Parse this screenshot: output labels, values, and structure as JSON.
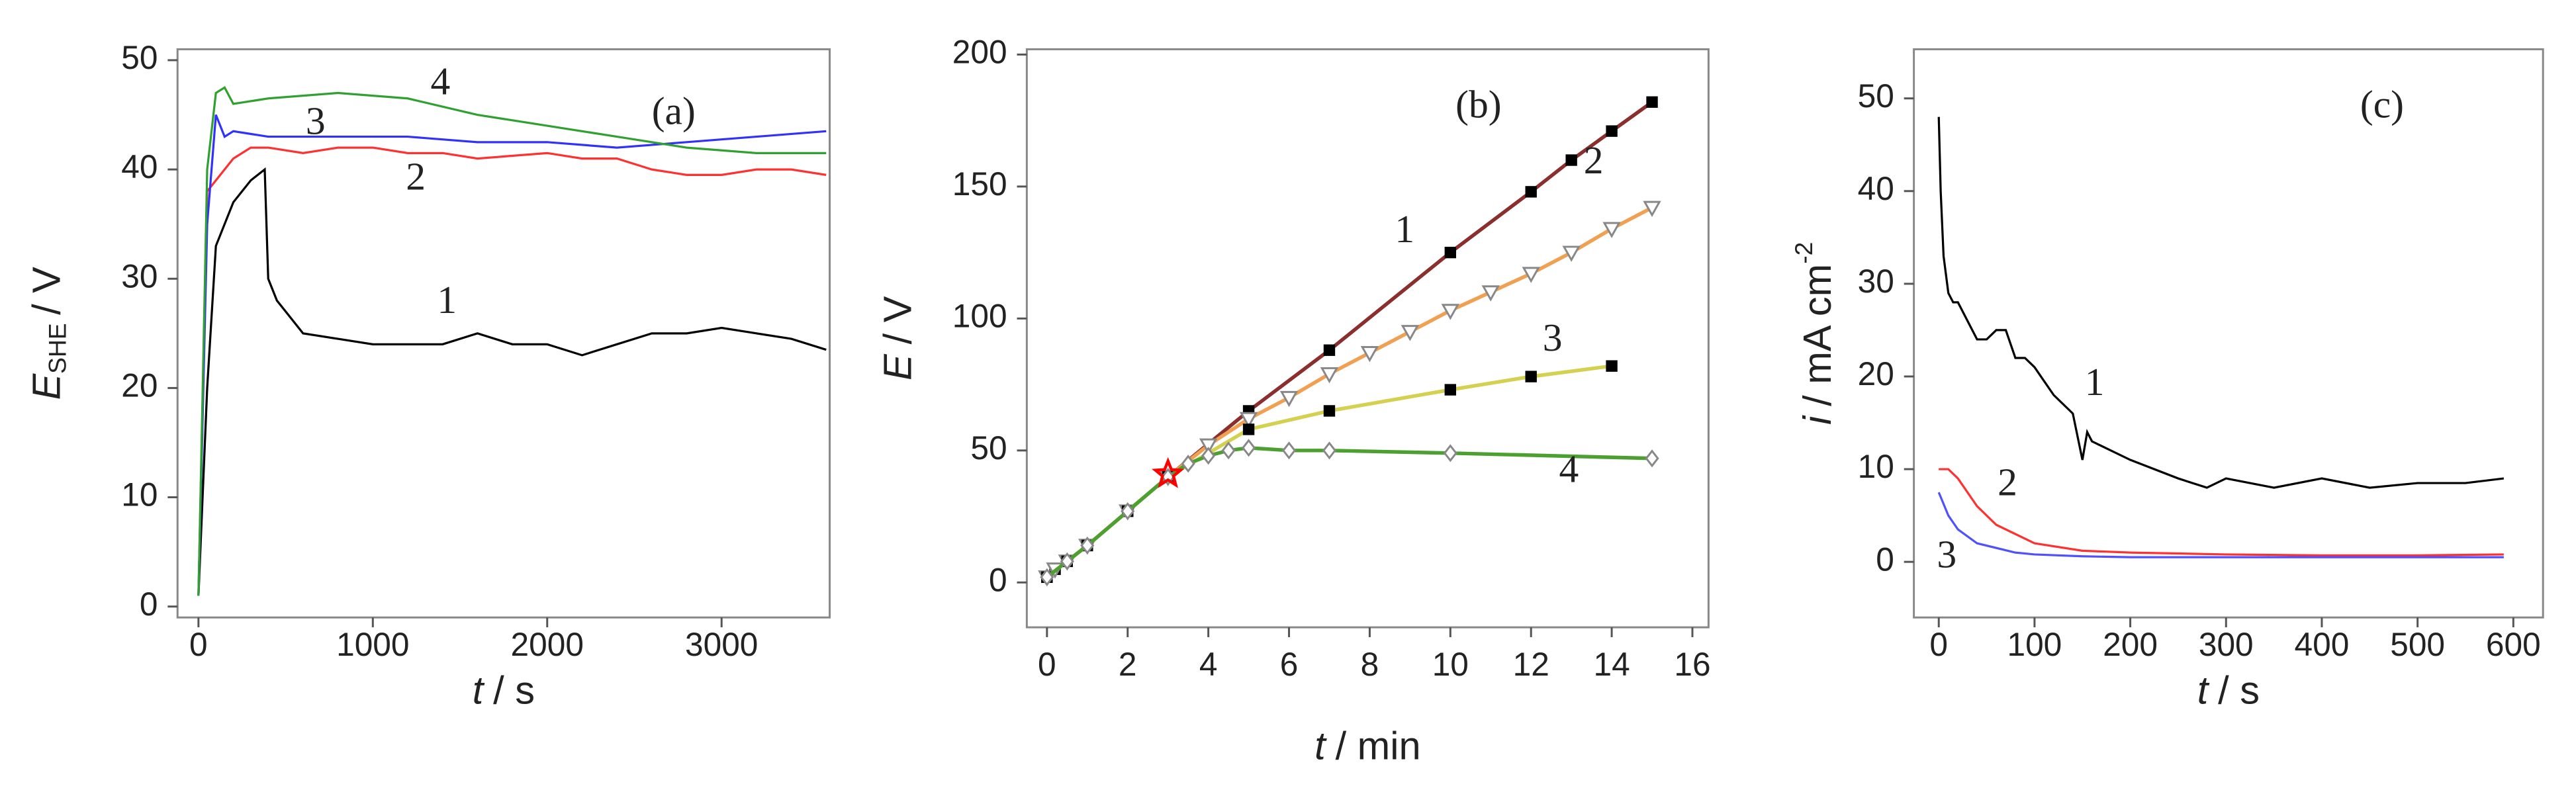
{
  "chart_data": [
    {
      "type": "line",
      "panel_label": "(a)",
      "x_label": {
        "variable": "t",
        "unit": "/ s"
      },
      "y_label": {
        "variable": "E",
        "subscript": "SHE",
        "unit": "/ V"
      },
      "xlim": [
        -120,
        3620
      ],
      "xticks": [
        0,
        1000,
        2000,
        3000
      ],
      "ylim": [
        -1,
        51
      ],
      "yticks": [
        0,
        10,
        20,
        30,
        40,
        50
      ],
      "series": [
        {
          "name": "1",
          "color": "#000000",
          "x": [
            0,
            50,
            100,
            200,
            300,
            380,
            400,
            450,
            500,
            600,
            800,
            1000,
            1200,
            1400,
            1600,
            1800,
            2000,
            2200,
            2400,
            2600,
            2800,
            3000,
            3200,
            3400,
            3600
          ],
          "values": [
            1,
            20,
            33,
            37,
            39,
            40,
            30,
            28,
            27,
            25,
            24.5,
            24,
            24,
            24,
            25,
            24,
            24,
            23,
            24,
            25,
            25,
            25.5,
            25,
            24.5,
            23.5
          ]
        },
        {
          "name": "2",
          "color": "#ff3030",
          "x": [
            0,
            50,
            100,
            200,
            300,
            400,
            600,
            800,
            1000,
            1200,
            1400,
            1600,
            2000,
            2200,
            2400,
            2600,
            2800,
            3000,
            3200,
            3400,
            3600
          ],
          "values": [
            1,
            38,
            39,
            41,
            42,
            42,
            41.5,
            42,
            42,
            41.5,
            41.5,
            41,
            41.5,
            41,
            41,
            40,
            39.5,
            39.5,
            40,
            40,
            39.5
          ]
        },
        {
          "name": "3",
          "color": "#3030ff",
          "x": [
            0,
            50,
            100,
            150,
            200,
            400,
            800,
            1200,
            1600,
            2000,
            2400,
            2800,
            3200,
            3600
          ],
          "values": [
            1,
            35,
            45,
            43,
            43.5,
            43,
            43,
            43,
            42.5,
            42.5,
            42,
            42.5,
            43,
            43.5
          ]
        },
        {
          "name": "4",
          "color": "#30a030",
          "x": [
            0,
            50,
            100,
            150,
            200,
            400,
            800,
            1200,
            1600,
            2000,
            2400,
            2800,
            3200,
            3600
          ],
          "values": [
            1,
            40,
            47,
            47.5,
            46,
            46.5,
            47,
            46.5,
            45,
            44,
            43,
            42,
            41.5,
            41.5
          ]
        }
      ]
    },
    {
      "type": "line",
      "panel_label": "(b)",
      "x_label": {
        "variable": "t",
        "unit": "/ min"
      },
      "y_label": {
        "variable": "E",
        "unit": "/ V"
      },
      "xlim": [
        -0.5,
        16.4
      ],
      "xticks": [
        0,
        2,
        4,
        6,
        8,
        10,
        12,
        14,
        16
      ],
      "ylim": [
        -17,
        202
      ],
      "yticks": [
        0,
        50,
        100,
        150,
        200
      ],
      "highlight": {
        "x": 3,
        "y": 41,
        "color": "#ff0000"
      },
      "series": [
        {
          "name": "1",
          "color": "#8b2e2e",
          "marker": "square",
          "marker_color": "#000000",
          "x": [
            0,
            0.2,
            0.5,
            1,
            2,
            3,
            5,
            7,
            10,
            12,
            13,
            14,
            15
          ],
          "values": [
            2,
            5,
            8,
            14,
            27,
            40,
            65,
            88,
            125,
            148,
            160,
            171,
            182
          ]
        },
        {
          "name": "2",
          "color": "#f0a050",
          "marker": "triangle",
          "marker_color": "#888888",
          "x": [
            0,
            0.2,
            0.5,
            1,
            2,
            3,
            4,
            5,
            6,
            7,
            8,
            9,
            10,
            11,
            12,
            13,
            14,
            15
          ],
          "values": [
            2,
            5,
            8,
            14,
            27,
            40,
            52,
            62,
            70,
            79,
            87,
            95,
            103,
            110,
            117,
            125,
            134,
            142
          ]
        },
        {
          "name": "3",
          "color": "#d4d050",
          "marker": "square",
          "marker_color": "#000000",
          "x": [
            0,
            0.5,
            1,
            2,
            3,
            5,
            7,
            10,
            12,
            14
          ],
          "values": [
            2,
            8,
            14,
            27,
            40,
            58,
            65,
            73,
            78,
            82
          ]
        },
        {
          "name": "4",
          "color": "#4ca030",
          "marker": "diamond",
          "marker_color": "#888888",
          "x": [
            0,
            0.5,
            1,
            2,
            3,
            3.5,
            4,
            4.5,
            5,
            6,
            7,
            10,
            15
          ],
          "values": [
            2,
            8,
            14,
            27,
            40,
            45,
            48,
            50,
            51,
            50,
            50,
            49,
            47
          ]
        }
      ]
    },
    {
      "type": "line",
      "panel_label": "(c)",
      "x_label": {
        "variable": "t",
        "unit": "/ s"
      },
      "y_label": {
        "variable": "i",
        "unit": "/ mA cm",
        "superscript": "-2"
      },
      "xlim": [
        -26,
        631
      ],
      "xticks": [
        0,
        100,
        200,
        300,
        400,
        500,
        600
      ],
      "ylim": [
        -6,
        55.3
      ],
      "yticks": [
        0,
        10,
        20,
        30,
        40,
        50
      ],
      "series": [
        {
          "name": "1",
          "color": "#000000",
          "x": [
            0,
            2,
            5,
            10,
            15,
            20,
            30,
            40,
            50,
            60,
            70,
            80,
            90,
            100,
            120,
            140,
            150,
            155,
            160,
            180,
            200,
            250,
            280,
            300,
            350,
            400,
            450,
            500,
            550,
            590
          ],
          "values": [
            48,
            40,
            33,
            29,
            28,
            28,
            26,
            24,
            24,
            25,
            25,
            22,
            22,
            21,
            18,
            16,
            11,
            14,
            13,
            12,
            11,
            9,
            8,
            9,
            8,
            9,
            8,
            8.5,
            8.5,
            9
          ]
        },
        {
          "name": "2",
          "color": "#ff3030",
          "x": [
            0,
            10,
            20,
            40,
            60,
            80,
            100,
            150,
            200,
            300,
            400,
            500,
            590
          ],
          "values": [
            10,
            10,
            9,
            6,
            4,
            3,
            2,
            1.2,
            1,
            0.8,
            0.7,
            0.7,
            0.8
          ]
        },
        {
          "name": "3",
          "color": "#5050ff",
          "x": [
            0,
            10,
            20,
            40,
            60,
            80,
            100,
            150,
            200,
            300,
            400,
            500,
            590
          ],
          "values": [
            7.5,
            5,
            3.5,
            2,
            1.5,
            1,
            0.8,
            0.6,
            0.5,
            0.5,
            0.5,
            0.5,
            0.5
          ]
        }
      ]
    }
  ]
}
